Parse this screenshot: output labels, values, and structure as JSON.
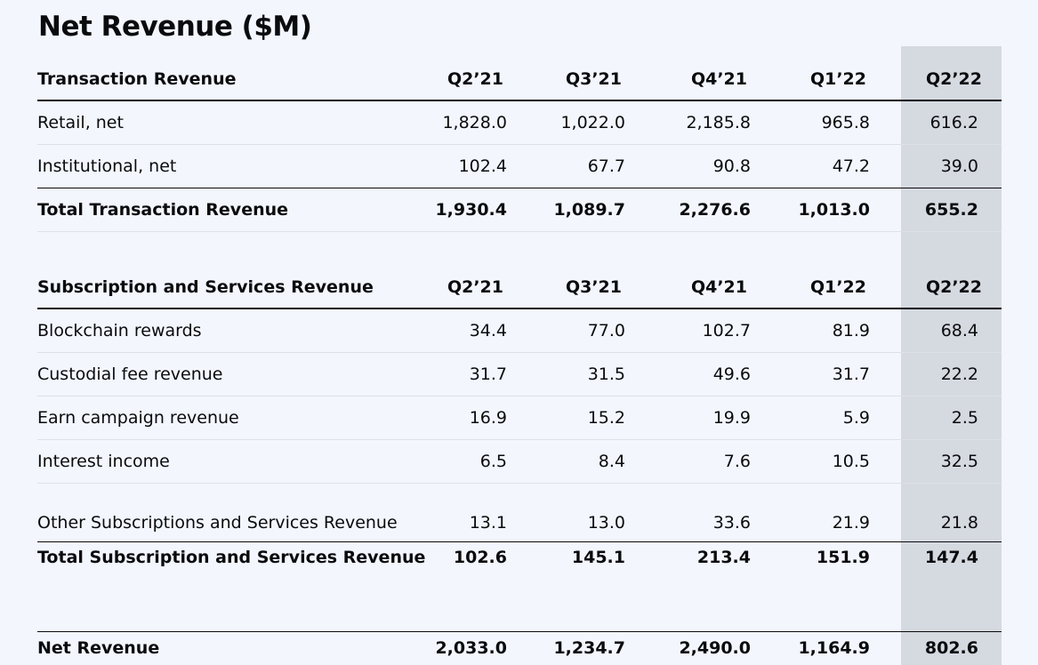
{
  "title": "Net Revenue ($M)",
  "quarters": [
    "Q2’21",
    "Q3’21",
    "Q4’21",
    "Q1’22",
    "Q2’22"
  ],
  "transaction": {
    "header": "Transaction Revenue",
    "rows": [
      {
        "label": "Retail, net",
        "values": [
          "1,828.0",
          "1,022.0",
          "2,185.8",
          "965.8",
          "616.2"
        ]
      },
      {
        "label": "Institutional, net",
        "values": [
          "102.4",
          "67.7",
          "90.8",
          "47.2",
          "39.0"
        ]
      }
    ],
    "total": {
      "label": "Total Transaction Revenue",
      "values": [
        "1,930.4",
        "1,089.7",
        "2,276.6",
        "1,013.0",
        "655.2"
      ]
    }
  },
  "subscription": {
    "header": "Subscription and Services Revenue",
    "rows": [
      {
        "label": "Blockchain rewards",
        "values": [
          "34.4",
          "77.0",
          "102.7",
          "81.9",
          "68.4"
        ]
      },
      {
        "label": "Custodial fee revenue",
        "values": [
          "31.7",
          "31.5",
          "49.6",
          "31.7",
          "22.2"
        ]
      },
      {
        "label": "Earn campaign revenue",
        "values": [
          "16.9",
          "15.2",
          "19.9",
          "5.9",
          "2.5"
        ]
      },
      {
        "label": "Interest income",
        "values": [
          "6.5",
          "8.4",
          "7.6",
          "10.5",
          "32.5"
        ]
      },
      {
        "label": "Other Subscriptions and Services Revenue",
        "values": [
          "13.1",
          "13.0",
          "33.6",
          "21.9",
          "21.8"
        ]
      }
    ],
    "total": {
      "label": "Total Subscription and Services Revenue",
      "values": [
        "102.6",
        "145.1",
        "213.4",
        "151.9",
        "147.4"
      ]
    }
  },
  "net_revenue": {
    "label": "Net Revenue",
    "values": [
      "2,033.0",
      "1,234.7",
      "2,490.0",
      "1,164.9",
      "802.6"
    ]
  },
  "colors": {
    "background": "#f3f6fd",
    "highlight_column": "#d5d9e0",
    "text": "#0a0b0d",
    "row_divider": "#dde1e8"
  }
}
